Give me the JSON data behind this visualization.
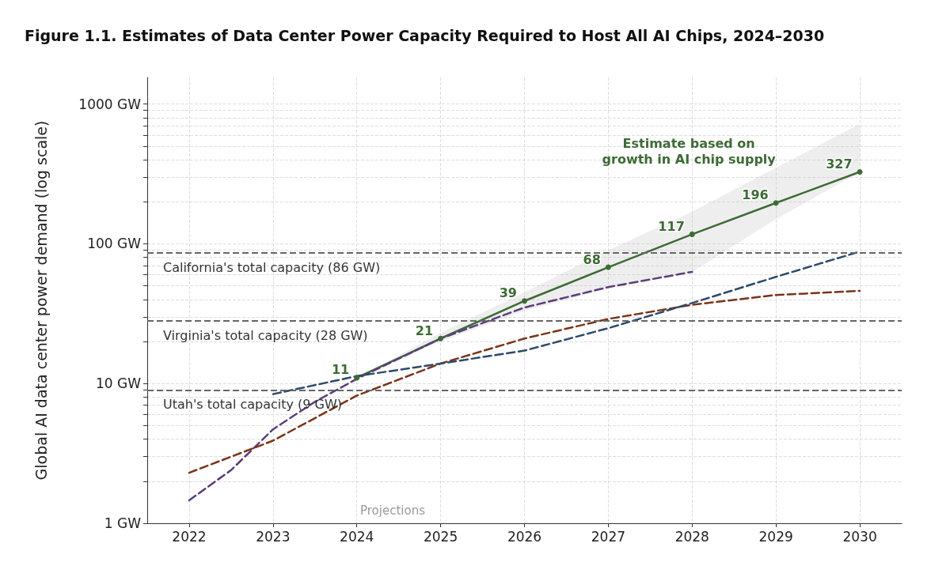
{
  "chart_data": {
    "type": "line",
    "title": "Figure 1.1. Estimates of Data Center Power Capacity Required to Host All AI Chips, 2024–2030",
    "ylabel": "Global AI data center power demand (log scale)",
    "log": "y",
    "grid": true,
    "legend": false,
    "xlim": [
      2021.5,
      2030.5
    ],
    "xticks": [
      2022,
      2023,
      2024,
      2025,
      2026,
      2027,
      2028,
      2029,
      2030
    ],
    "ylim": [
      1,
      1550
    ],
    "yticks": [
      {
        "value": 1,
        "label": "1 GW"
      },
      {
        "value": 2,
        "label": null
      },
      {
        "value": 3,
        "label": null
      },
      {
        "value": 4,
        "label": null
      },
      {
        "value": 5,
        "label": null
      },
      {
        "value": 6,
        "label": null
      },
      {
        "value": 7,
        "label": null
      },
      {
        "value": 8,
        "label": null
      },
      {
        "value": 9,
        "label": null
      },
      {
        "value": 10,
        "label": "10 GW"
      },
      {
        "value": 20,
        "label": null
      },
      {
        "value": 30,
        "label": null
      },
      {
        "value": 40,
        "label": null
      },
      {
        "value": 50,
        "label": null
      },
      {
        "value": 60,
        "label": null
      },
      {
        "value": 70,
        "label": null
      },
      {
        "value": 80,
        "label": null
      },
      {
        "value": 90,
        "label": null
      },
      {
        "value": 100,
        "label": "100 GW"
      },
      {
        "value": 200,
        "label": null
      },
      {
        "value": 300,
        "label": null
      },
      {
        "value": 400,
        "label": null
      },
      {
        "value": 500,
        "label": null
      },
      {
        "value": 600,
        "label": null
      },
      {
        "value": 700,
        "label": null
      },
      {
        "value": 800,
        "label": null
      },
      {
        "value": 900,
        "label": null
      },
      {
        "value": 1000,
        "label": "1000 GW"
      }
    ],
    "series": [
      {
        "name": "Estimate based on growth in AI chip supply",
        "color": "#3d6b35",
        "x": [
          2024,
          2025,
          2026,
          2027,
          2028,
          2029,
          2030
        ],
        "values": [
          11,
          21,
          39,
          68,
          117,
          196,
          327
        ],
        "value_labels": [
          "11",
          "21",
          "39",
          "68",
          "117",
          "196",
          "327"
        ],
        "lower": [
          11,
          20,
          33,
          48,
          63,
          150,
          327
        ],
        "upper": [
          11,
          23,
          45,
          90,
          170,
          350,
          720
        ],
        "marker": "circle",
        "line_style": "solid"
      },
      {
        "color": "#5b3f7a",
        "x": [
          2022,
          2022.5,
          2023,
          2023.5,
          2024,
          2025,
          2026,
          2027,
          2028
        ],
        "values": [
          1.46,
          2.4,
          4.7,
          7.4,
          10.8,
          21,
          35,
          49,
          63
        ],
        "marker": "none",
        "line_style": "dashed"
      },
      {
        "color": "#7a3418",
        "x": [
          2022,
          2023,
          2024,
          2025,
          2026,
          2027,
          2028,
          2029,
          2030
        ],
        "values": [
          2.3,
          3.9,
          8.2,
          13.9,
          21,
          29,
          36.6,
          43,
          46
        ],
        "marker": "none",
        "line_style": "dashed"
      },
      {
        "color": "#2d4a6b",
        "x": [
          2023,
          2024,
          2025,
          2026,
          2027,
          2028,
          2029,
          2030
        ],
        "values": [
          8.4,
          11.3,
          13.9,
          17.2,
          24.9,
          37.7,
          58,
          88
        ],
        "marker": "none",
        "line_style": "dashed"
      }
    ],
    "ref_lines": [
      {
        "axis": "y",
        "value": 86,
        "label": "California's total capacity (86 GW)",
        "color": "#666666",
        "line_style": "dashed"
      },
      {
        "axis": "y",
        "value": 28,
        "label": "Virginia's total capacity (28 GW)",
        "color": "#666666",
        "line_style": "dashed"
      },
      {
        "axis": "y",
        "value": 9,
        "label": "Utah's total capacity (9 GW)",
        "color": "#666666",
        "line_style": "dashed"
      }
    ],
    "annotations": [
      "Projections"
    ]
  }
}
